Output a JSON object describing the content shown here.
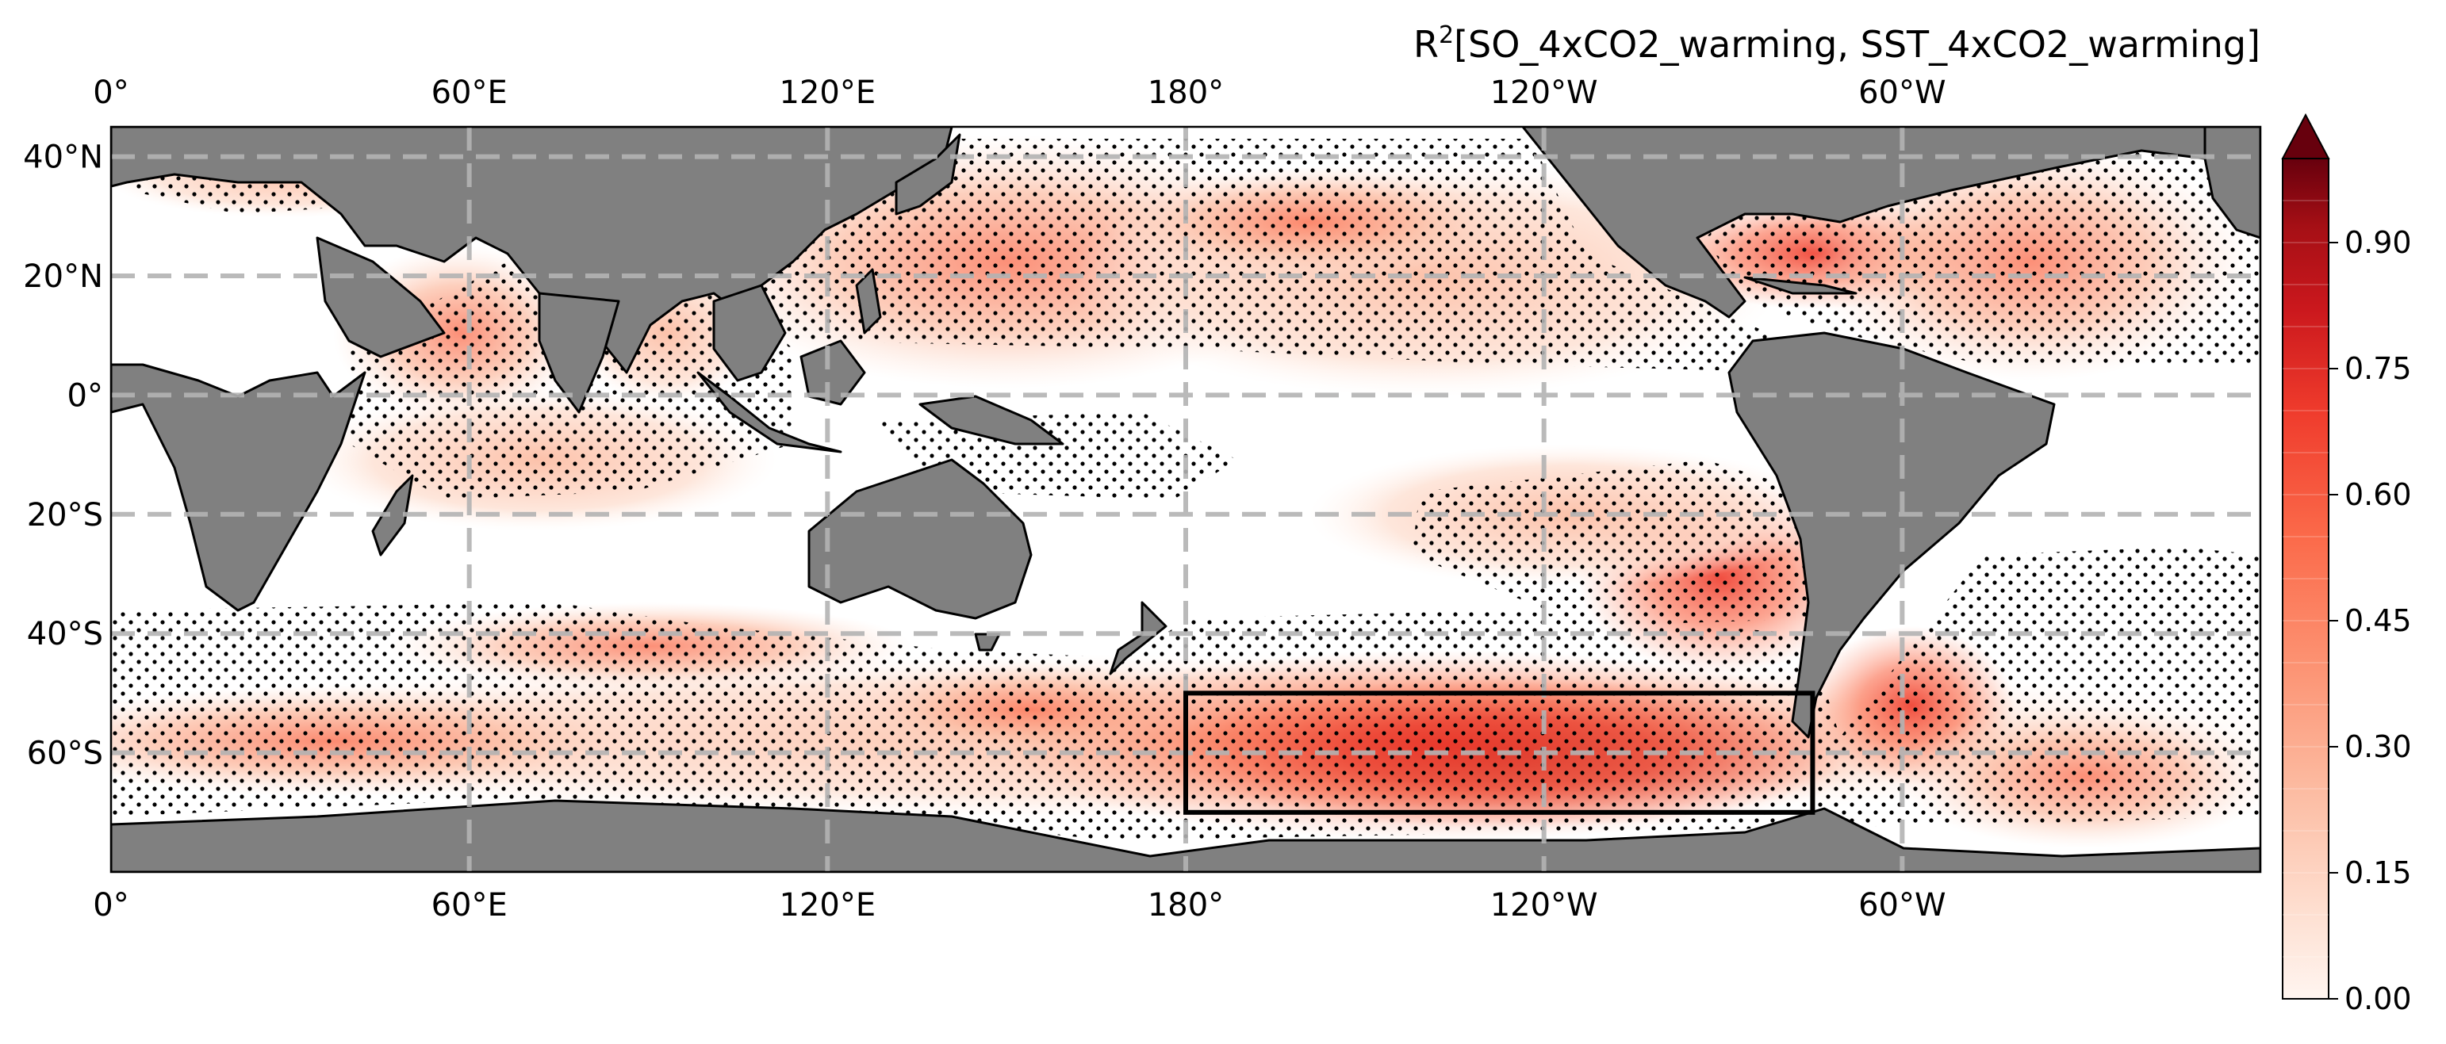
{
  "title": {
    "prefix": "R",
    "superscript": "2",
    "rest": "[SO_4xCO2_warming, SST_4xCO2_warming]"
  },
  "map": {
    "projection": "PlateCarree, central longitude 180",
    "lon_range": [
      0,
      360
    ],
    "lat_range": [
      -80,
      45
    ],
    "land_color": "#808080",
    "coast_color": "#000000",
    "grid_color": "#b3b3b3",
    "grid_style": "dashed",
    "x_ticks": [
      {
        "lon": 0,
        "label": "0°"
      },
      {
        "lon": 60,
        "label": "60°E"
      },
      {
        "lon": 120,
        "label": "120°E"
      },
      {
        "lon": 180,
        "label": "180°"
      },
      {
        "lon": 240,
        "label": "120°W"
      },
      {
        "lon": 300,
        "label": "60°W"
      }
    ],
    "y_ticks": [
      {
        "lat": 40,
        "label": "40°N"
      },
      {
        "lat": 20,
        "label": "20°N"
      },
      {
        "lat": 0,
        "label": "0°"
      },
      {
        "lat": -20,
        "label": "20°S"
      },
      {
        "lat": -40,
        "label": "40°S"
      },
      {
        "lat": -60,
        "label": "60°S"
      }
    ],
    "region_box": {
      "lon_min": 180,
      "lon_max": 285,
      "lat_min": -70,
      "lat_max": -50,
      "color": "#000000"
    },
    "stippling": "significance dots"
  },
  "colorbar": {
    "cmap": "Reds",
    "extend": "max",
    "vmin": 0.0,
    "vmax": 1.0,
    "levels": 20,
    "ticks": [
      {
        "value": 0.0,
        "label": "0.00"
      },
      {
        "value": 0.15,
        "label": "0.15"
      },
      {
        "value": 0.3,
        "label": "0.30"
      },
      {
        "value": 0.45,
        "label": "0.45"
      },
      {
        "value": 0.6,
        "label": "0.60"
      },
      {
        "value": 0.75,
        "label": "0.75"
      },
      {
        "value": 0.9,
        "label": "0.90"
      }
    ]
  }
}
